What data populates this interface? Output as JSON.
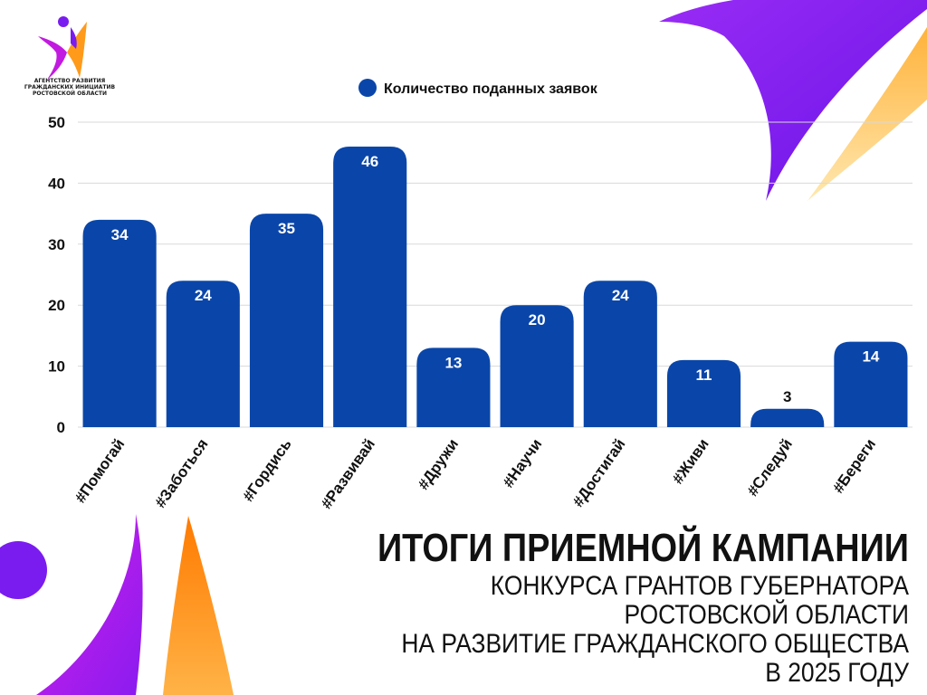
{
  "logo": {
    "org_lines": [
      "АГЕНТСТВО РАЗВИТИЯ",
      "ГРАЖДАНСКИХ ИНИЦИАТИВ",
      "РОСТОВСКОЙ ОБЛАСТИ"
    ]
  },
  "heading": {
    "title": "ИТОГИ ПРИЕМНОЙ КАМПАНИИ",
    "lines": [
      "КОНКУРСА ГРАНТОВ ГУБЕРНАТОРА",
      "РОСТОВСКОЙ ОБЛАСТИ",
      "НА РАЗВИТИЕ ГРАЖДАНСКОГО ОБЩЕСТВА",
      "В 2025 ГОДУ"
    ]
  },
  "colors": {
    "bar": "#0a46a9",
    "grid": "#d9d9d9",
    "purple": "#7a1cf0",
    "magenta": "#c21ae0",
    "orange": "#ff8a00",
    "yellow": "#ffd36b"
  },
  "chart_data": {
    "type": "bar",
    "categories": [
      "#Помогай",
      "#Заботься",
      "#Гордись",
      "#Развивай",
      "#Дружи",
      "#Научи",
      "#Достигай",
      "#Живи",
      "#Следуй",
      "#Береги"
    ],
    "series": [
      {
        "name": "Количество поданных заявок",
        "values": [
          34,
          24,
          35,
          46,
          13,
          20,
          24,
          11,
          3,
          14
        ]
      }
    ],
    "ylim": [
      0,
      50
    ],
    "yticks": [
      0,
      10,
      20,
      30,
      40,
      50
    ],
    "grid": true,
    "legend": "top-center",
    "data_labels": true
  }
}
